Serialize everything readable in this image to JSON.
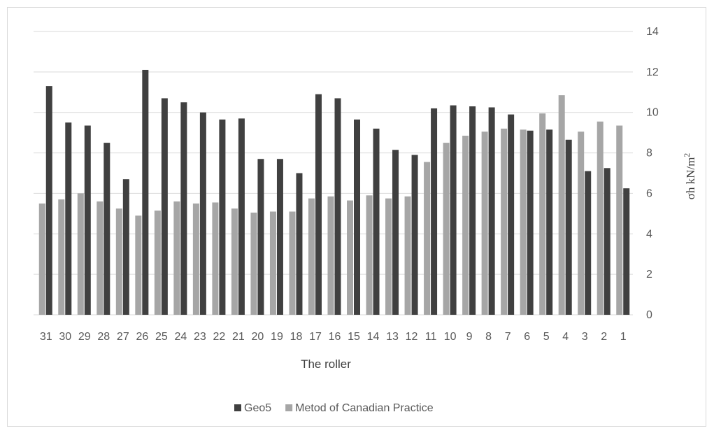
{
  "chart_data": {
    "type": "bar",
    "xlabel": "The roller",
    "ylabel": "σh kN/m",
    "ylabel_sup": "2",
    "ylim": [
      0,
      14
    ],
    "yticks": [
      0,
      2,
      4,
      6,
      8,
      10,
      12,
      14
    ],
    "grid": true,
    "legend_position": "bottom",
    "categories": [
      "31",
      "30",
      "29",
      "28",
      "27",
      "26",
      "25",
      "24",
      "23",
      "22",
      "21",
      "20",
      "19",
      "18",
      "17",
      "16",
      "15",
      "14",
      "13",
      "12",
      "11",
      "10",
      "9",
      "8",
      "7",
      "6",
      "5",
      "4",
      "3",
      "2",
      "1"
    ],
    "series": [
      {
        "name": "Geo5",
        "color": "#404040",
        "values": [
          11.3,
          9.5,
          9.35,
          8.5,
          6.7,
          12.1,
          10.7,
          10.5,
          10.0,
          9.65,
          9.7,
          7.7,
          7.7,
          7.0,
          10.9,
          10.7,
          9.65,
          9.2,
          8.15,
          7.9,
          10.2,
          10.35,
          10.3,
          10.25,
          9.9,
          9.1,
          9.15,
          8.65,
          7.1,
          7.25,
          6.25
        ]
      },
      {
        "name": "Metod of Canadian Practice",
        "color": "#a6a6a6",
        "values": [
          5.5,
          5.7,
          6.0,
          5.6,
          5.25,
          4.9,
          5.15,
          5.6,
          5.5,
          5.55,
          5.25,
          5.05,
          5.1,
          5.1,
          5.75,
          5.85,
          5.65,
          5.9,
          5.75,
          5.85,
          7.55,
          8.5,
          8.85,
          9.05,
          9.2,
          9.15,
          9.95,
          10.85,
          9.05,
          9.55,
          9.35
        ]
      }
    ]
  }
}
